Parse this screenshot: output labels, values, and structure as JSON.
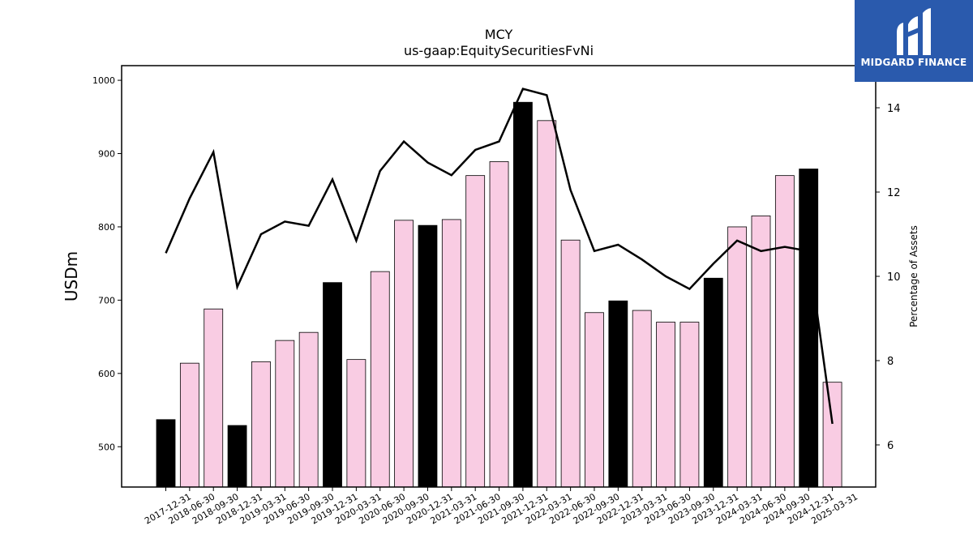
{
  "chart_data": {
    "type": "bar",
    "title": "MCY",
    "subtitle": "us-gaap:EquitySecuritiesFvNi",
    "ylabel": "USDm",
    "y2label": "Percentage of Assets",
    "ylim": [
      445,
      1020
    ],
    "y2lim": [
      5.0,
      15.0
    ],
    "yticks": [
      500,
      600,
      700,
      800,
      900,
      1000
    ],
    "y2ticks": [
      6,
      8,
      10,
      12,
      14
    ],
    "grid": false,
    "categories": [
      "2017-12-31",
      "2018-06-30",
      "2018-09-30",
      "2018-12-31",
      "2019-03-31",
      "2019-06-30",
      "2019-09-30",
      "2019-12-31",
      "2020-03-31",
      "2020-06-30",
      "2020-09-30",
      "2020-12-31",
      "2021-03-31",
      "2021-06-30",
      "2021-09-30",
      "2021-12-31",
      "2022-03-31",
      "2022-06-30",
      "2022-09-30",
      "2022-12-31",
      "2023-03-31",
      "2023-06-30",
      "2023-09-30",
      "2023-12-31",
      "2024-03-31",
      "2024-06-30",
      "2024-09-30",
      "2024-12-31",
      "2025-03-31"
    ],
    "series": [
      {
        "type": "bar",
        "values": [
          537,
          614,
          688,
          529,
          616,
          645,
          656,
          724,
          619,
          739,
          809,
          802,
          810,
          870,
          889,
          970,
          945,
          782,
          683,
          699,
          686,
          670,
          670,
          730,
          800,
          815,
          870,
          879,
          588
        ],
        "colors": [
          "#000000",
          "#f9cce3",
          "#f9cce3",
          "#000000",
          "#f9cce3",
          "#f9cce3",
          "#f9cce3",
          "#000000",
          "#f9cce3",
          "#f9cce3",
          "#f9cce3",
          "#000000",
          "#f9cce3",
          "#f9cce3",
          "#f9cce3",
          "#000000",
          "#f9cce3",
          "#f9cce3",
          "#f9cce3",
          "#000000",
          "#f9cce3",
          "#f9cce3",
          "#f9cce3",
          "#000000",
          "#f9cce3",
          "#f9cce3",
          "#f9cce3",
          "#000000",
          "#f9cce3"
        ]
      },
      {
        "type": "line",
        "axis": "right",
        "color": "#000000",
        "values": [
          10.55,
          11.85,
          12.95,
          9.75,
          11.0,
          11.3,
          11.2,
          12.3,
          10.85,
          12.5,
          13.2,
          12.7,
          12.4,
          13.0,
          13.2,
          14.45,
          14.3,
          12.05,
          10.6,
          10.75,
          10.4,
          10.0,
          9.7,
          10.3,
          10.85,
          10.6,
          10.7,
          10.6,
          6.5
        ]
      }
    ]
  },
  "logo": {
    "text": "MIDGARD FINANCE",
    "background": "#2a5aad"
  }
}
